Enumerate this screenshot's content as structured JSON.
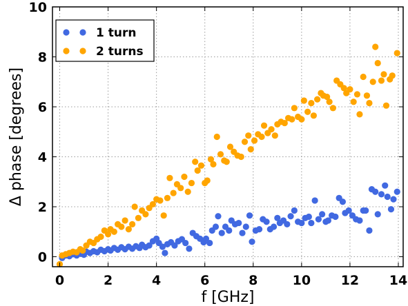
{
  "chart_data": {
    "type": "scatter",
    "xlabel": "f [GHz]",
    "ylabel": "Δ phase [degrees]",
    "xlim": [
      -0.3,
      14.2
    ],
    "ylim": [
      -0.4,
      10
    ],
    "xticks": [
      "0",
      "2",
      "4",
      "6",
      "8",
      "10",
      "12",
      "14"
    ],
    "yticks": [
      "0",
      "2",
      "4",
      "6",
      "8",
      "10"
    ],
    "grid": true,
    "legend_position": "top-left",
    "series": [
      {
        "name": "1 turn",
        "color": "#4169e1",
        "points": [
          [
            0.1,
            -0.05
          ],
          [
            0.25,
            0.05
          ],
          [
            0.4,
            0.02
          ],
          [
            0.55,
            0.1
          ],
          [
            0.7,
            0.05
          ],
          [
            0.85,
            0.12
          ],
          [
            1.0,
            0.08
          ],
          [
            1.1,
            0.2
          ],
          [
            1.25,
            0.15
          ],
          [
            1.4,
            0.22
          ],
          [
            1.55,
            0.18
          ],
          [
            1.7,
            0.28
          ],
          [
            1.85,
            0.22
          ],
          [
            2.0,
            0.3
          ],
          [
            2.1,
            0.25
          ],
          [
            2.25,
            0.35
          ],
          [
            2.4,
            0.28
          ],
          [
            2.55,
            0.38
          ],
          [
            2.7,
            0.3
          ],
          [
            2.85,
            0.4
          ],
          [
            3.0,
            0.32
          ],
          [
            3.15,
            0.42
          ],
          [
            3.3,
            0.35
          ],
          [
            3.4,
            0.48
          ],
          [
            3.55,
            0.38
          ],
          [
            3.7,
            0.45
          ],
          [
            3.85,
            0.62
          ],
          [
            4.0,
            0.72
          ],
          [
            4.1,
            0.55
          ],
          [
            4.25,
            0.4
          ],
          [
            4.35,
            0.15
          ],
          [
            4.45,
            0.5
          ],
          [
            4.6,
            0.58
          ],
          [
            4.75,
            0.45
          ],
          [
            4.9,
            0.62
          ],
          [
            5.05,
            0.7
          ],
          [
            5.2,
            0.55
          ],
          [
            5.35,
            0.32
          ],
          [
            5.5,
            0.95
          ],
          [
            5.65,
            0.82
          ],
          [
            5.8,
            0.72
          ],
          [
            5.95,
            0.58
          ],
          [
            6.05,
            0.72
          ],
          [
            6.2,
            0.55
          ],
          [
            6.3,
            1.05
          ],
          [
            6.45,
            1.2
          ],
          [
            6.55,
            1.62
          ],
          [
            6.7,
            0.95
          ],
          [
            6.85,
            1.2
          ],
          [
            7.0,
            1.05
          ],
          [
            7.1,
            1.45
          ],
          [
            7.25,
            1.3
          ],
          [
            7.4,
            1.35
          ],
          [
            7.55,
            0.95
          ],
          [
            7.7,
            1.2
          ],
          [
            7.85,
            1.65
          ],
          [
            7.95,
            0.6
          ],
          [
            8.1,
            1.05
          ],
          [
            8.25,
            1.1
          ],
          [
            8.4,
            1.5
          ],
          [
            8.55,
            1.4
          ],
          [
            8.7,
            1.1
          ],
          [
            8.85,
            1.2
          ],
          [
            9.0,
            1.55
          ],
          [
            9.1,
            1.35
          ],
          [
            9.25,
            1.45
          ],
          [
            9.4,
            1.3
          ],
          [
            9.55,
            1.62
          ],
          [
            9.7,
            1.85
          ],
          [
            9.85,
            1.4
          ],
          [
            10.0,
            1.35
          ],
          [
            10.15,
            1.55
          ],
          [
            10.3,
            1.6
          ],
          [
            10.4,
            1.35
          ],
          [
            10.55,
            2.25
          ],
          [
            10.7,
            1.5
          ],
          [
            10.85,
            1.7
          ],
          [
            11.0,
            1.4
          ],
          [
            11.1,
            1.45
          ],
          [
            11.25,
            1.65
          ],
          [
            11.4,
            1.6
          ],
          [
            11.55,
            2.35
          ],
          [
            11.7,
            2.2
          ],
          [
            11.8,
            1.75
          ],
          [
            11.95,
            1.85
          ],
          [
            12.1,
            1.65
          ],
          [
            12.25,
            1.5
          ],
          [
            12.4,
            1.45
          ],
          [
            12.55,
            1.85
          ],
          [
            12.65,
            1.85
          ],
          [
            12.8,
            1.05
          ],
          [
            12.9,
            2.7
          ],
          [
            13.05,
            2.6
          ],
          [
            13.15,
            1.7
          ],
          [
            13.3,
            2.5
          ],
          [
            13.45,
            2.85
          ],
          [
            13.55,
            2.4
          ],
          [
            13.7,
            1.9
          ],
          [
            13.8,
            2.3
          ],
          [
            13.95,
            2.6
          ]
        ]
      },
      {
        "name": "2 turns",
        "color": "#ffa500",
        "points": [
          [
            0.0,
            -0.3
          ],
          [
            0.1,
            0.05
          ],
          [
            0.25,
            0.1
          ],
          [
            0.4,
            0.15
          ],
          [
            0.55,
            0.2
          ],
          [
            0.7,
            0.18
          ],
          [
            0.85,
            0.3
          ],
          [
            0.95,
            0.25
          ],
          [
            1.1,
            0.45
          ],
          [
            1.25,
            0.6
          ],
          [
            1.4,
            0.55
          ],
          [
            1.55,
            0.7
          ],
          [
            1.7,
            0.8
          ],
          [
            1.85,
            1.05
          ],
          [
            2.0,
            0.9
          ],
          [
            2.1,
            1.1
          ],
          [
            2.25,
            1.0
          ],
          [
            2.4,
            1.3
          ],
          [
            2.55,
            1.2
          ],
          [
            2.7,
            1.45
          ],
          [
            2.85,
            1.1
          ],
          [
            3.0,
            1.3
          ],
          [
            3.1,
            2.0
          ],
          [
            3.25,
            1.55
          ],
          [
            3.4,
            1.85
          ],
          [
            3.55,
            1.7
          ],
          [
            3.7,
            1.95
          ],
          [
            3.85,
            2.1
          ],
          [
            4.0,
            2.3
          ],
          [
            4.15,
            2.25
          ],
          [
            4.3,
            1.65
          ],
          [
            4.45,
            2.35
          ],
          [
            4.55,
            3.15
          ],
          [
            4.7,
            2.55
          ],
          [
            4.85,
            2.9
          ],
          [
            5.0,
            2.75
          ],
          [
            5.15,
            3.2
          ],
          [
            5.3,
            2.6
          ],
          [
            5.45,
            2.95
          ],
          [
            5.6,
            3.8
          ],
          [
            5.7,
            3.45
          ],
          [
            5.85,
            3.65
          ],
          [
            6.0,
            2.95
          ],
          [
            6.1,
            3.05
          ],
          [
            6.25,
            3.9
          ],
          [
            6.35,
            3.7
          ],
          [
            6.5,
            4.8
          ],
          [
            6.65,
            4.1
          ],
          [
            6.8,
            3.85
          ],
          [
            6.9,
            3.8
          ],
          [
            7.05,
            4.4
          ],
          [
            7.2,
            4.2
          ],
          [
            7.35,
            4.05
          ],
          [
            7.5,
            4.0
          ],
          [
            7.65,
            4.6
          ],
          [
            7.8,
            4.85
          ],
          [
            7.9,
            4.3
          ],
          [
            8.05,
            4.65
          ],
          [
            8.2,
            4.9
          ],
          [
            8.35,
            4.8
          ],
          [
            8.45,
            5.25
          ],
          [
            8.6,
            4.95
          ],
          [
            8.75,
            5.1
          ],
          [
            8.9,
            4.85
          ],
          [
            9.0,
            5.3
          ],
          [
            9.15,
            5.4
          ],
          [
            9.3,
            5.35
          ],
          [
            9.45,
            5.55
          ],
          [
            9.6,
            5.5
          ],
          [
            9.7,
            5.95
          ],
          [
            9.85,
            5.6
          ],
          [
            10.0,
            5.5
          ],
          [
            10.1,
            6.25
          ],
          [
            10.25,
            5.8
          ],
          [
            10.4,
            6.15
          ],
          [
            10.5,
            5.65
          ],
          [
            10.65,
            6.3
          ],
          [
            10.8,
            6.55
          ],
          [
            10.9,
            6.45
          ],
          [
            11.05,
            6.4
          ],
          [
            11.15,
            6.2
          ],
          [
            11.3,
            5.95
          ],
          [
            11.45,
            7.05
          ],
          [
            11.6,
            6.9
          ],
          [
            11.75,
            6.75
          ],
          [
            11.85,
            6.55
          ],
          [
            12.0,
            6.7
          ],
          [
            12.15,
            6.2
          ],
          [
            12.3,
            6.5
          ],
          [
            12.4,
            5.7
          ],
          [
            12.55,
            7.2
          ],
          [
            12.7,
            6.45
          ],
          [
            12.8,
            6.15
          ],
          [
            12.95,
            7.0
          ],
          [
            13.05,
            8.4
          ],
          [
            13.15,
            7.75
          ],
          [
            13.3,
            7.05
          ],
          [
            13.4,
            7.3
          ],
          [
            13.5,
            6.05
          ],
          [
            13.65,
            7.1
          ],
          [
            13.75,
            7.25
          ],
          [
            13.95,
            8.15
          ]
        ]
      }
    ]
  }
}
